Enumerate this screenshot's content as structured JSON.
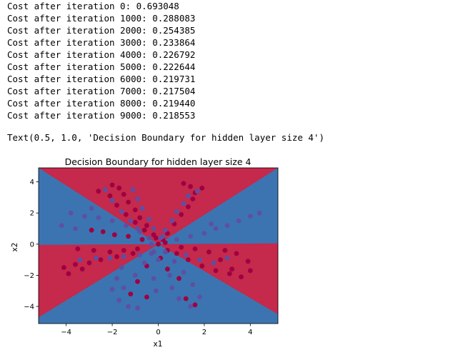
{
  "cell_output": {
    "log_lines": [
      "Cost after iteration 0: 0.693048",
      "Cost after iteration 1000: 0.288083",
      "Cost after iteration 2000: 0.254385",
      "Cost after iteration 3000: 0.233864",
      "Cost after iteration 4000: 0.226792",
      "Cost after iteration 5000: 0.222644",
      "Cost after iteration 6000: 0.219731",
      "Cost after iteration 7000: 0.217504",
      "Cost after iteration 8000: 0.219440",
      "Cost after iteration 9000: 0.218553"
    ],
    "repr_text": "Text(0.5, 1.0, 'Decision Boundary for hidden layer size 4')"
  },
  "colors": {
    "region_red": "#c5294b",
    "region_blue": "#3c74b1",
    "point_red": "#9e0142",
    "point_blue": "#5e4fa2"
  },
  "chart_data": {
    "type": "scatter",
    "title": "Decision Boundary for hidden layer size 4",
    "xlabel": "x1",
    "ylabel": "x2",
    "xlim": [
      -5.2,
      5.2
    ],
    "ylim": [
      -5.1,
      4.9
    ],
    "x_ticks": [
      -4,
      -2,
      0,
      2,
      4
    ],
    "y_ticks": [
      -4,
      -2,
      0,
      2,
      4
    ],
    "x_tick_labels": [
      "−4",
      "−2",
      "0",
      "2",
      "4"
    ],
    "y_tick_labels": [
      "−4",
      "−2",
      "0",
      "2",
      "4"
    ],
    "background": "decision-regions",
    "grid": false,
    "series": [
      {
        "color": "point_red",
        "points": [
          [
            -2.0,
            3.8
          ],
          [
            -1.7,
            3.6
          ],
          [
            -1.5,
            3.2
          ],
          [
            -1.3,
            2.7
          ],
          [
            -1.0,
            2.2
          ],
          [
            -0.8,
            1.7
          ],
          [
            -0.5,
            1.2
          ],
          [
            -0.2,
            0.6
          ],
          [
            -2.1,
            3.1
          ],
          [
            -1.8,
            2.5
          ],
          [
            -1.4,
            1.9
          ],
          [
            -1.0,
            1.4
          ],
          [
            -0.6,
            0.9
          ],
          [
            1.1,
            3.9
          ],
          [
            1.4,
            3.7
          ],
          [
            1.6,
            3.3
          ],
          [
            1.5,
            2.9
          ],
          [
            1.3,
            2.4
          ],
          [
            1.0,
            1.9
          ],
          [
            0.7,
            1.3
          ],
          [
            0.4,
            0.7
          ],
          [
            0.2,
            0.3
          ],
          [
            -2.9,
            0.9
          ],
          [
            -2.4,
            0.8
          ],
          [
            -1.9,
            0.6
          ],
          [
            -1.3,
            0.5
          ],
          [
            -0.7,
            0.3
          ],
          [
            -3.5,
            -0.3
          ],
          [
            -2.8,
            -0.4
          ],
          [
            -2.1,
            -0.5
          ],
          [
            -1.5,
            -0.4
          ],
          [
            -0.9,
            -0.3
          ],
          [
            -4.1,
            -1.5
          ],
          [
            -3.6,
            -1.3
          ],
          [
            -3.0,
            -1.2
          ],
          [
            -2.5,
            -1.0
          ],
          [
            -1.8,
            -0.8
          ],
          [
            -1.1,
            -0.6
          ],
          [
            -3.9,
            -1.9
          ],
          [
            -3.3,
            -1.6
          ],
          [
            2.2,
            -0.5
          ],
          [
            1.6,
            -0.3
          ],
          [
            1.0,
            -0.2
          ],
          [
            2.7,
            -1.0
          ],
          [
            3.2,
            -1.6
          ],
          [
            3.6,
            -2.1
          ],
          [
            4.0,
            -1.7
          ],
          [
            3.9,
            -1.1
          ],
          [
            3.4,
            -0.6
          ],
          [
            2.9,
            -0.4
          ],
          [
            0.4,
            -0.4
          ],
          [
            0.8,
            -0.6
          ],
          [
            1.3,
            -1.0
          ],
          [
            1.9,
            -1.4
          ],
          [
            2.5,
            -1.7
          ],
          [
            3.1,
            -1.9
          ],
          [
            -0.5,
            -1.4
          ],
          [
            -0.9,
            -2.4
          ],
          [
            -1.2,
            -3.2
          ],
          [
            -0.5,
            -3.4
          ],
          [
            1.2,
            -3.5
          ],
          [
            1.6,
            -3.9
          ],
          [
            0.9,
            -2.2
          ],
          [
            0.4,
            -1.6
          ],
          [
            0.1,
            -0.9
          ],
          [
            0.0,
            0.0
          ],
          [
            -0.1,
            0.4
          ],
          [
            0.3,
            0.1
          ],
          [
            -2.6,
            3.4
          ],
          [
            1.9,
            3.6
          ]
        ]
      },
      {
        "color": "point_blue",
        "points": [
          [
            -2.3,
            3.5
          ],
          [
            -2.0,
            2.8
          ],
          [
            -1.6,
            2.1
          ],
          [
            -1.2,
            1.5
          ],
          [
            -0.9,
            1.0
          ],
          [
            -0.4,
            0.4
          ],
          [
            -1.1,
            3.5
          ],
          [
            -0.9,
            2.9
          ],
          [
            -0.7,
            2.3
          ],
          [
            -0.4,
            1.6
          ],
          [
            -0.2,
            1.0
          ],
          [
            1.7,
            3.4
          ],
          [
            1.3,
            3.1
          ],
          [
            1.1,
            2.6
          ],
          [
            0.8,
            2.1
          ],
          [
            0.6,
            1.5
          ],
          [
            0.3,
            0.9
          ],
          [
            0.1,
            0.4
          ],
          [
            -3.8,
            2.0
          ],
          [
            -3.2,
            1.8
          ],
          [
            -2.6,
            1.7
          ],
          [
            -2.0,
            1.5
          ],
          [
            -1.4,
            1.2
          ],
          [
            -0.8,
            0.8
          ],
          [
            -4.2,
            1.2
          ],
          [
            -3.6,
            1.0
          ],
          [
            2.5,
            1.0
          ],
          [
            3.0,
            1.2
          ],
          [
            3.5,
            1.5
          ],
          [
            4.0,
            1.8
          ],
          [
            4.4,
            2.0
          ],
          [
            2.0,
            0.7
          ],
          [
            1.4,
            0.5
          ],
          [
            0.8,
            0.3
          ],
          [
            -3.4,
            -1.0
          ],
          [
            -2.7,
            -0.9
          ],
          [
            -2.1,
            -0.9
          ],
          [
            -1.5,
            -0.8
          ],
          [
            -0.8,
            -0.7
          ],
          [
            -0.2,
            -0.5
          ],
          [
            -1.6,
            -1.5
          ],
          [
            -1.8,
            -2.2
          ],
          [
            -2.0,
            -2.9
          ],
          [
            -1.7,
            -3.6
          ],
          [
            -1.3,
            -4.0
          ],
          [
            -0.9,
            -4.1
          ],
          [
            -1.5,
            -2.8
          ],
          [
            -1.0,
            -2.0
          ],
          [
            -0.6,
            -1.2
          ],
          [
            -0.3,
            -0.6
          ],
          [
            0.5,
            -2.0
          ],
          [
            0.6,
            -2.8
          ],
          [
            0.9,
            -3.5
          ],
          [
            1.4,
            -4.0
          ],
          [
            1.8,
            -3.4
          ],
          [
            1.5,
            -2.6
          ],
          [
            1.1,
            -1.8
          ],
          [
            0.7,
            -1.1
          ],
          [
            0.3,
            -0.5
          ],
          [
            -0.1,
            -3.0
          ],
          [
            -0.2,
            -2.2
          ],
          [
            0.0,
            -1.0
          ],
          [
            0.2,
            0.5
          ],
          [
            -0.3,
            0.0
          ],
          [
            3.0,
            -0.9
          ],
          [
            2.4,
            -1.2
          ],
          [
            1.8,
            -1.0
          ],
          [
            1.2,
            -0.7
          ],
          [
            -2.9,
            2.3
          ],
          [
            2.3,
            1.3
          ]
        ]
      }
    ]
  }
}
